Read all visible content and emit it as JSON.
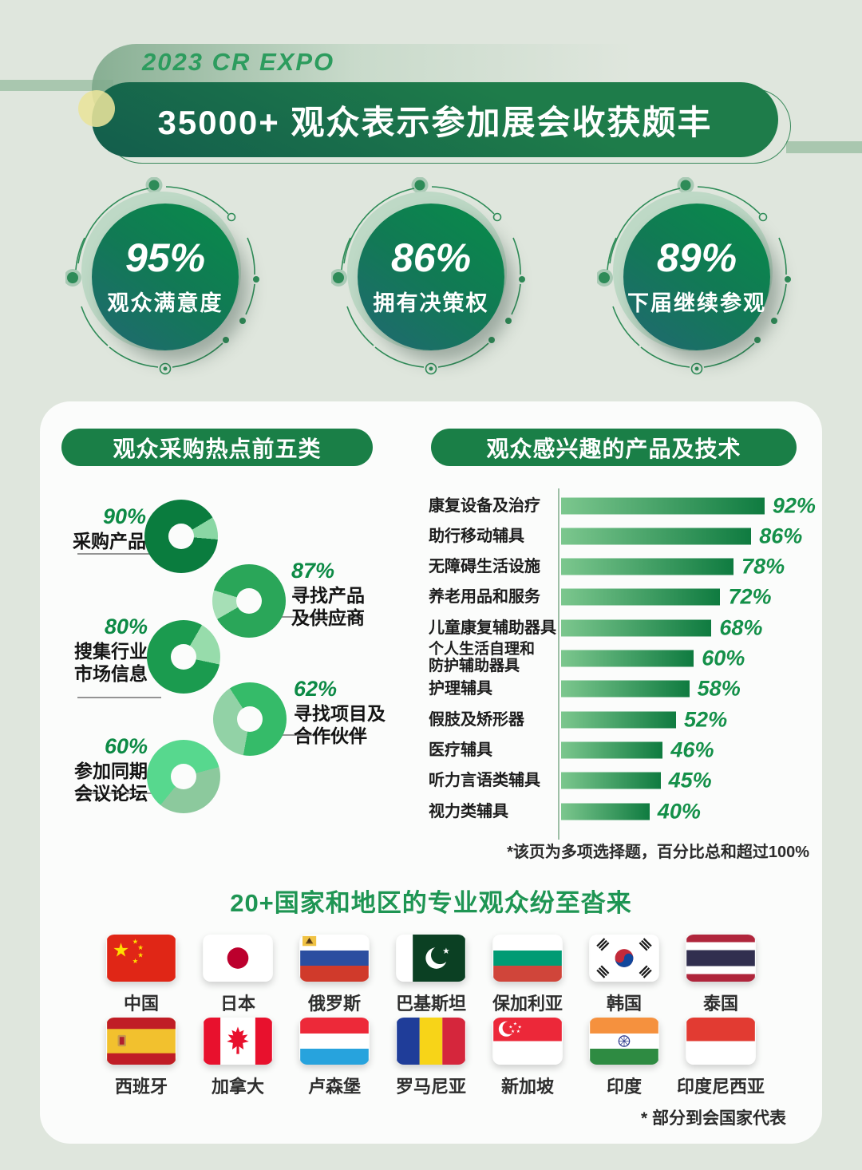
{
  "header": {
    "eyebrow": "2023 CR EXPO",
    "title": "35000+ 观众表示参加展会收获颇丰"
  },
  "stats": [
    {
      "value": "95%",
      "label": "观众满意度"
    },
    {
      "value": "86%",
      "label": "拥有决策权"
    },
    {
      "value": "89%",
      "label": "下届继续参观"
    }
  ],
  "chart_data": [
    {
      "type": "pie",
      "title": "观众采购热点前五类",
      "series": [
        {
          "label": "采购产品",
          "value": 90
        },
        {
          "label": "寻找产品\n及供应商",
          "value": 87
        },
        {
          "label": "搜集行业\n市场信息",
          "value": 80
        },
        {
          "label": "寻找项目及\n合作伙伴",
          "value": 62
        },
        {
          "label": "参加同期\n会议论坛",
          "value": 60
        }
      ]
    },
    {
      "type": "bar",
      "title": "观众感兴趣的产品及技术",
      "categories": [
        "康复设备及治疗",
        "助行移动辅具",
        "无障碍生活设施",
        "养老用品和服务",
        "儿童康复辅助器具",
        "个人生活自理和\n防护辅助器具",
        "护理辅具",
        "假肢及矫形器",
        "医疗辅具",
        "听力言语类辅具",
        "视力类辅具"
      ],
      "values": [
        92,
        86,
        78,
        72,
        68,
        60,
        58,
        52,
        46,
        45,
        40
      ],
      "xlim": [
        0,
        100
      ],
      "footnote": "*该页为多项选择题，百分比总和超过100%"
    }
  ],
  "countries": {
    "heading": "20+国家和地区的专业观众纷至沓来",
    "footnote": "* 部分到会国家代表",
    "items": [
      {
        "label": "中国",
        "icon": "flag-china"
      },
      {
        "label": "日本",
        "icon": "flag-japan"
      },
      {
        "label": "俄罗斯",
        "icon": "flag-russia"
      },
      {
        "label": "巴基斯坦",
        "icon": "flag-pakistan"
      },
      {
        "label": "保加利亚",
        "icon": "flag-bulgaria"
      },
      {
        "label": "韩国",
        "icon": "flag-south-korea"
      },
      {
        "label": "泰国",
        "icon": "flag-thailand"
      },
      {
        "label": "西班牙",
        "icon": "flag-spain"
      },
      {
        "label": "加拿大",
        "icon": "flag-canada"
      },
      {
        "label": "卢森堡",
        "icon": "flag-luxembourg"
      },
      {
        "label": "罗马尼亚",
        "icon": "flag-romania"
      },
      {
        "label": "新加坡",
        "icon": "flag-singapore"
      },
      {
        "label": "印度",
        "icon": "flag-india"
      },
      {
        "label": "印度尼西亚",
        "icon": "flag-indonesia"
      }
    ]
  },
  "colors": {
    "page_bg": "#dfe6dd",
    "banner_green": "#1e7c4a",
    "teal": "#216872",
    "accent_green": "#1a7f47",
    "value_green": "#149049",
    "bar_gradient_start": "#7cc78e",
    "bar_gradient_end": "#0f7b40"
  }
}
